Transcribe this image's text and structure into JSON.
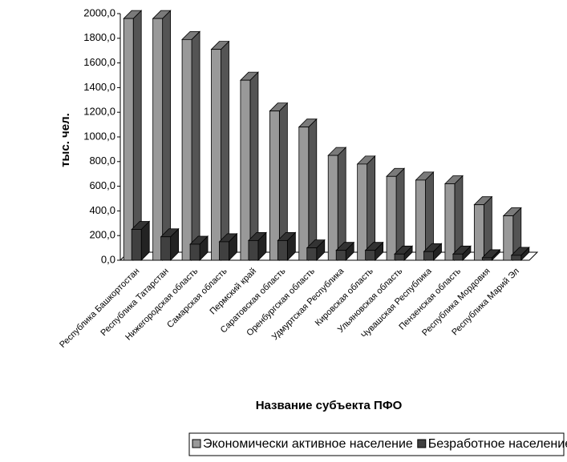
{
  "chart_data": {
    "type": "bar3d",
    "x_label": "Название субъекта ПФО",
    "y_label": "тыс. чел.",
    "categories": [
      "Республика Башкортостан",
      "Республика Татарстан",
      "Нижегородская область",
      "Самарская область",
      "Пермский край",
      "Саратовская область",
      "Оренбургская область",
      "Удмуртская Республика",
      "Кировская область",
      "Ульяновская область",
      "Чувашская Республика",
      "Пензенская область",
      "Республика Мордовия",
      "Республика Марий Эл"
    ],
    "series": [
      {
        "name": "Экономически активное население",
        "color": "#999999",
        "values": [
          1960,
          1960,
          1790,
          1710,
          1460,
          1210,
          1080,
          850,
          780,
          680,
          650,
          620,
          450,
          360
        ]
      },
      {
        "name": "Безработное население",
        "color": "#404040",
        "values": [
          250,
          190,
          130,
          150,
          160,
          160,
          100,
          80,
          80,
          50,
          70,
          50,
          20,
          40
        ]
      }
    ],
    "ylim": [
      0,
      2000
    ],
    "yticks": [
      {
        "value": 0,
        "label": "0,0"
      },
      {
        "value": 200,
        "label": "200,0"
      },
      {
        "value": 400,
        "label": "400,0"
      },
      {
        "value": 600,
        "label": "600,0"
      },
      {
        "value": 800,
        "label": "800,0"
      },
      {
        "value": 1000,
        "label": "1000,0"
      },
      {
        "value": 1200,
        "label": "1200,0"
      },
      {
        "value": 1400,
        "label": "1400,0"
      },
      {
        "value": 1600,
        "label": "1600,0"
      },
      {
        "value": 1800,
        "label": "1800,0"
      },
      {
        "value": 2000,
        "label": "2000,0"
      }
    ],
    "legend": "bottom"
  }
}
